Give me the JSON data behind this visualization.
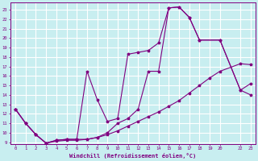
{
  "xlabel": "Windchill (Refroidissement éolien,°C)",
  "background_color": "#c8eef0",
  "grid_color": "#ffffff",
  "line_color": "#800080",
  "xlim": [
    -0.5,
    23.5
  ],
  "ylim": [
    8.8,
    23.8
  ],
  "xticks": [
    0,
    1,
    2,
    3,
    4,
    5,
    6,
    7,
    8,
    9,
    10,
    11,
    12,
    13,
    14,
    15,
    16,
    17,
    18,
    19,
    20,
    22,
    23
  ],
  "yticks": [
    9,
    10,
    11,
    12,
    13,
    14,
    15,
    16,
    17,
    18,
    19,
    20,
    21,
    22,
    23
  ],
  "line_top_x": [
    0,
    1,
    2,
    3,
    4,
    5,
    6,
    7,
    8,
    9,
    10,
    11,
    12,
    13,
    14,
    15,
    16,
    17,
    18,
    20,
    22,
    23
  ],
  "line_top_y": [
    12.5,
    11.0,
    9.8,
    8.9,
    9.2,
    9.3,
    9.3,
    16.5,
    13.5,
    11.2,
    11.5,
    18.3,
    18.5,
    18.7,
    19.5,
    23.2,
    23.3,
    22.2,
    19.8,
    19.8,
    14.5,
    15.2
  ],
  "line_mid_x": [
    0,
    1,
    2,
    3,
    4,
    5,
    6,
    7,
    8,
    9,
    10,
    11,
    12,
    13,
    14,
    15,
    16,
    17,
    18,
    20,
    22,
    23
  ],
  "line_mid_y": [
    12.5,
    11.0,
    9.8,
    8.9,
    9.2,
    9.3,
    9.3,
    9.3,
    9.5,
    10.0,
    11.0,
    11.5,
    12.5,
    16.5,
    16.5,
    23.2,
    23.3,
    22.2,
    19.8,
    19.8,
    14.5,
    14.0
  ],
  "line_bot_x": [
    0,
    1,
    2,
    3,
    4,
    5,
    6,
    7,
    8,
    9,
    10,
    11,
    12,
    13,
    14,
    15,
    16,
    17,
    18,
    19,
    20,
    22,
    23
  ],
  "line_bot_y": [
    12.5,
    11.0,
    9.8,
    8.9,
    9.1,
    9.2,
    9.2,
    9.3,
    9.5,
    9.8,
    10.2,
    10.7,
    11.2,
    11.7,
    12.2,
    12.8,
    13.4,
    14.2,
    15.0,
    15.8,
    16.5,
    17.3,
    17.2
  ]
}
